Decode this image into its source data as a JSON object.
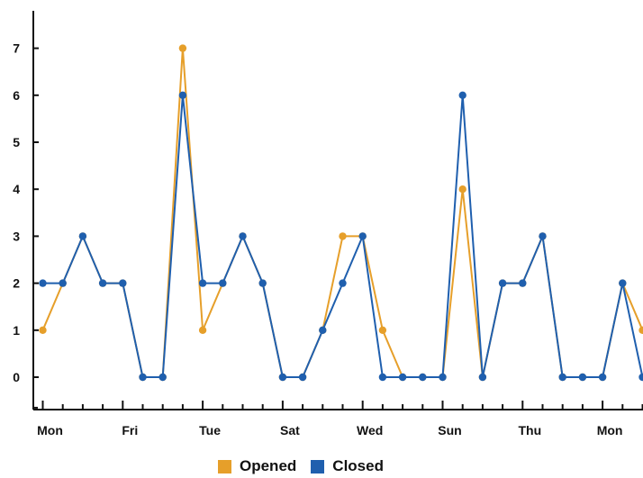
{
  "colors": {
    "opened": "#E69F2A",
    "closed": "#1F5FAE",
    "axis": "#111111"
  },
  "chart_data": {
    "type": "line",
    "title": "",
    "xlabel": "",
    "ylabel": "",
    "ylim": [
      -0.6,
      7.4
    ],
    "y_ticks": [
      "0",
      "1",
      "2",
      "3",
      "4",
      "5",
      "6",
      "7"
    ],
    "x_ticks": [
      {
        "label": "Mon",
        "index": 0
      },
      {
        "label": "Fri",
        "index": 4
      },
      {
        "label": "Tue",
        "index": 8
      },
      {
        "label": "Sat",
        "index": 12
      },
      {
        "label": "Wed",
        "index": 16
      },
      {
        "label": "Sun",
        "index": 20
      },
      {
        "label": "Thu",
        "index": 24
      },
      {
        "label": "Mon",
        "index": 28
      }
    ],
    "series": [
      {
        "name": "Opened",
        "color_key": "opened",
        "values": [
          1,
          2,
          3,
          2,
          2,
          0,
          0,
          7,
          1,
          2,
          3,
          2,
          0,
          0,
          1,
          3,
          3,
          1,
          0,
          0,
          0,
          4,
          0,
          2,
          2,
          3,
          0,
          0,
          0,
          2,
          1
        ]
      },
      {
        "name": "Closed",
        "color_key": "closed",
        "values": [
          2,
          2,
          3,
          2,
          2,
          0,
          0,
          6,
          2,
          2,
          3,
          2,
          0,
          0,
          1,
          2,
          3,
          0,
          0,
          0,
          0,
          6,
          0,
          2,
          2,
          3,
          0,
          0,
          0,
          2,
          0
        ]
      }
    ],
    "legend": {
      "position": "bottom-center",
      "items": [
        "Opened",
        "Closed"
      ]
    },
    "grid": false
  }
}
